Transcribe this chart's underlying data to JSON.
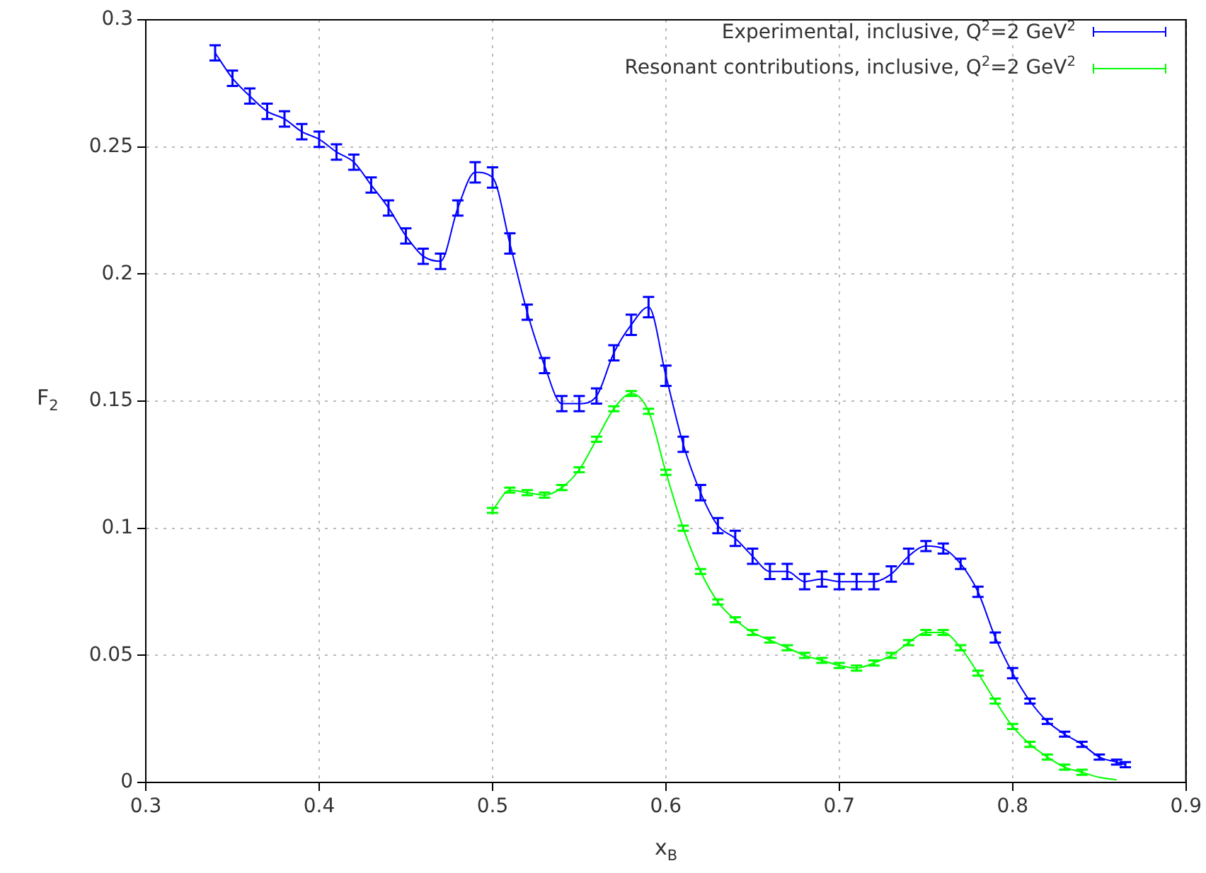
{
  "chart_data": {
    "type": "line",
    "xlabel": "x$_{B}$",
    "ylabel": "F$_{2}$",
    "xlim": [
      0.3,
      0.9
    ],
    "xticks": [
      0.3,
      0.4,
      0.5,
      0.6,
      0.7,
      0.8,
      0.9
    ],
    "ylim": [
      0,
      0.3
    ],
    "yticks": [
      0,
      0.05,
      0.1,
      0.15,
      0.2,
      0.25,
      0.3
    ],
    "grid": true,
    "legend": "top right",
    "line_style": "solid",
    "series": [
      {
        "name": "Experimental, inclusive, Q$^{2}$=2 GeV$^{2}$",
        "color": "#0000ff",
        "x": [
          0.34,
          0.35,
          0.36,
          0.37,
          0.38,
          0.39,
          0.4,
          0.41,
          0.42,
          0.43,
          0.44,
          0.45,
          0.46,
          0.47,
          0.48,
          0.49,
          0.5,
          0.51,
          0.52,
          0.53,
          0.54,
          0.55,
          0.56,
          0.57,
          0.58,
          0.59,
          0.6,
          0.61,
          0.62,
          0.63,
          0.64,
          0.65,
          0.66,
          0.67,
          0.68,
          0.69,
          0.7,
          0.71,
          0.72,
          0.73,
          0.74,
          0.75,
          0.76,
          0.77,
          0.78,
          0.79,
          0.8,
          0.81,
          0.82,
          0.83,
          0.84,
          0.85,
          0.86,
          0.865
        ],
        "values": [
          0.287,
          0.277,
          0.27,
          0.264,
          0.261,
          0.256,
          0.253,
          0.248,
          0.244,
          0.235,
          0.226,
          0.215,
          0.207,
          0.205,
          0.226,
          0.24,
          0.238,
          0.212,
          0.185,
          0.164,
          0.149,
          0.149,
          0.152,
          0.169,
          0.18,
          0.187,
          0.16,
          0.133,
          0.114,
          0.101,
          0.096,
          0.089,
          0.083,
          0.083,
          0.079,
          0.08,
          0.079,
          0.079,
          0.079,
          0.082,
          0.089,
          0.093,
          0.092,
          0.086,
          0.075,
          0.057,
          0.043,
          0.032,
          0.024,
          0.019,
          0.015,
          0.01,
          0.008,
          0.007
        ],
        "errors": [
          0.003,
          0.003,
          0.003,
          0.003,
          0.003,
          0.003,
          0.003,
          0.003,
          0.003,
          0.003,
          0.003,
          0.003,
          0.003,
          0.003,
          0.003,
          0.004,
          0.004,
          0.004,
          0.003,
          0.003,
          0.003,
          0.003,
          0.003,
          0.003,
          0.004,
          0.004,
          0.004,
          0.003,
          0.003,
          0.003,
          0.003,
          0.003,
          0.003,
          0.003,
          0.003,
          0.003,
          0.003,
          0.003,
          0.003,
          0.003,
          0.003,
          0.002,
          0.002,
          0.002,
          0.002,
          0.002,
          0.002,
          0.001,
          0.001,
          0.001,
          0.001,
          0.001,
          0.001,
          0.001
        ]
      },
      {
        "name": "Resonant contributions, inclusive, Q$^{2}$=2 GeV$^{2}$",
        "color": "#00ff00",
        "x": [
          0.5,
          0.51,
          0.52,
          0.53,
          0.54,
          0.55,
          0.56,
          0.57,
          0.58,
          0.59,
          0.6,
          0.61,
          0.62,
          0.63,
          0.64,
          0.65,
          0.66,
          0.67,
          0.68,
          0.69,
          0.7,
          0.71,
          0.72,
          0.73,
          0.74,
          0.75,
          0.76,
          0.77,
          0.78,
          0.79,
          0.8,
          0.81,
          0.82,
          0.83,
          0.84,
          0.85,
          0.86
        ],
        "values": [
          0.107,
          0.115,
          0.114,
          0.113,
          0.116,
          0.123,
          0.135,
          0.147,
          0.153,
          0.146,
          0.122,
          0.1,
          0.083,
          0.071,
          0.064,
          0.059,
          0.056,
          0.053,
          0.05,
          0.048,
          0.046,
          0.045,
          0.047,
          0.05,
          0.055,
          0.059,
          0.059,
          0.053,
          0.043,
          0.032,
          0.022,
          0.015,
          0.01,
          0.006,
          0.004,
          0.002,
          0.001
        ],
        "errors": [
          0.001,
          0.001,
          0.001,
          0.001,
          0.001,
          0.001,
          0.001,
          0.001,
          0.001,
          0.001,
          0.001,
          0.001,
          0.001,
          0.001,
          0.001,
          0.001,
          0.001,
          0.001,
          0.001,
          0.001,
          0.001,
          0.001,
          0.001,
          0.001,
          0.001,
          0.001,
          0.001,
          0.001,
          0.001,
          0.001,
          0.001,
          0.001,
          0.001,
          0.001,
          0.001,
          null,
          null
        ]
      }
    ]
  }
}
